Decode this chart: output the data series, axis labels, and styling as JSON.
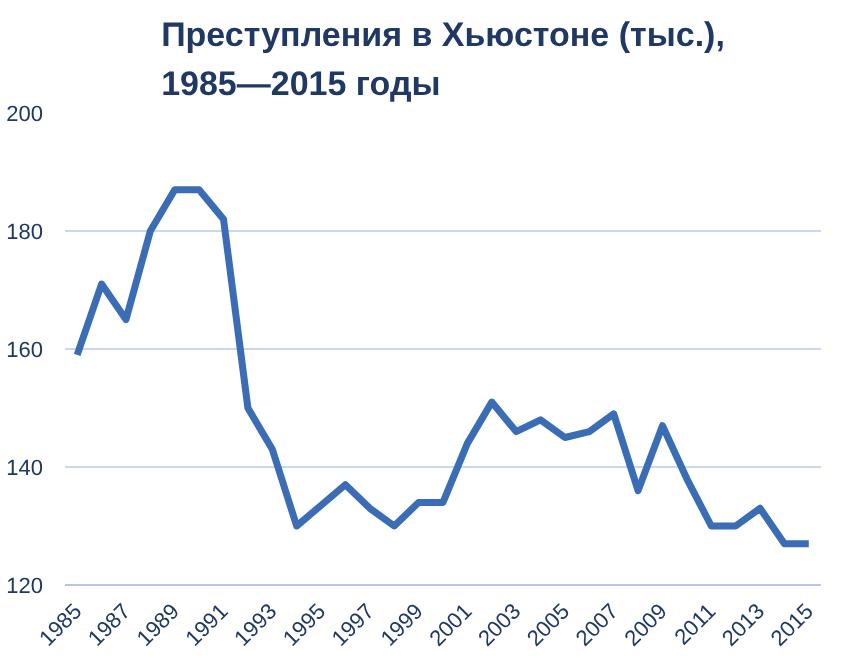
{
  "chart_data": {
    "type": "line",
    "title": "Преступления в Хьюстоне (тыс.),\n1985—2015 годы",
    "categories": [
      "1985",
      null,
      "1987",
      null,
      "1989",
      null,
      "1991",
      null,
      "1993",
      null,
      "1995",
      null,
      "1997",
      null,
      "1999",
      null,
      "2001",
      null,
      "2003",
      null,
      "2005",
      null,
      "2007",
      null,
      "2009",
      null,
      "2011",
      null,
      "2013",
      null,
      "2015"
    ],
    "series": [
      {
        "color": "#3a6db5",
        "values": [
          159,
          171,
          165,
          180,
          187,
          187,
          182,
          150,
          143,
          130,
          133.5,
          137,
          133,
          130,
          134,
          134,
          144,
          151,
          146,
          148,
          145,
          146,
          149,
          136,
          147,
          138,
          130,
          130,
          133,
          127,
          127
        ]
      }
    ],
    "ylim": [
      120,
      200
    ],
    "yticks": [
      120,
      140,
      160,
      180,
      200
    ],
    "grid": "y",
    "marker": "none",
    "line_style": "solid"
  }
}
